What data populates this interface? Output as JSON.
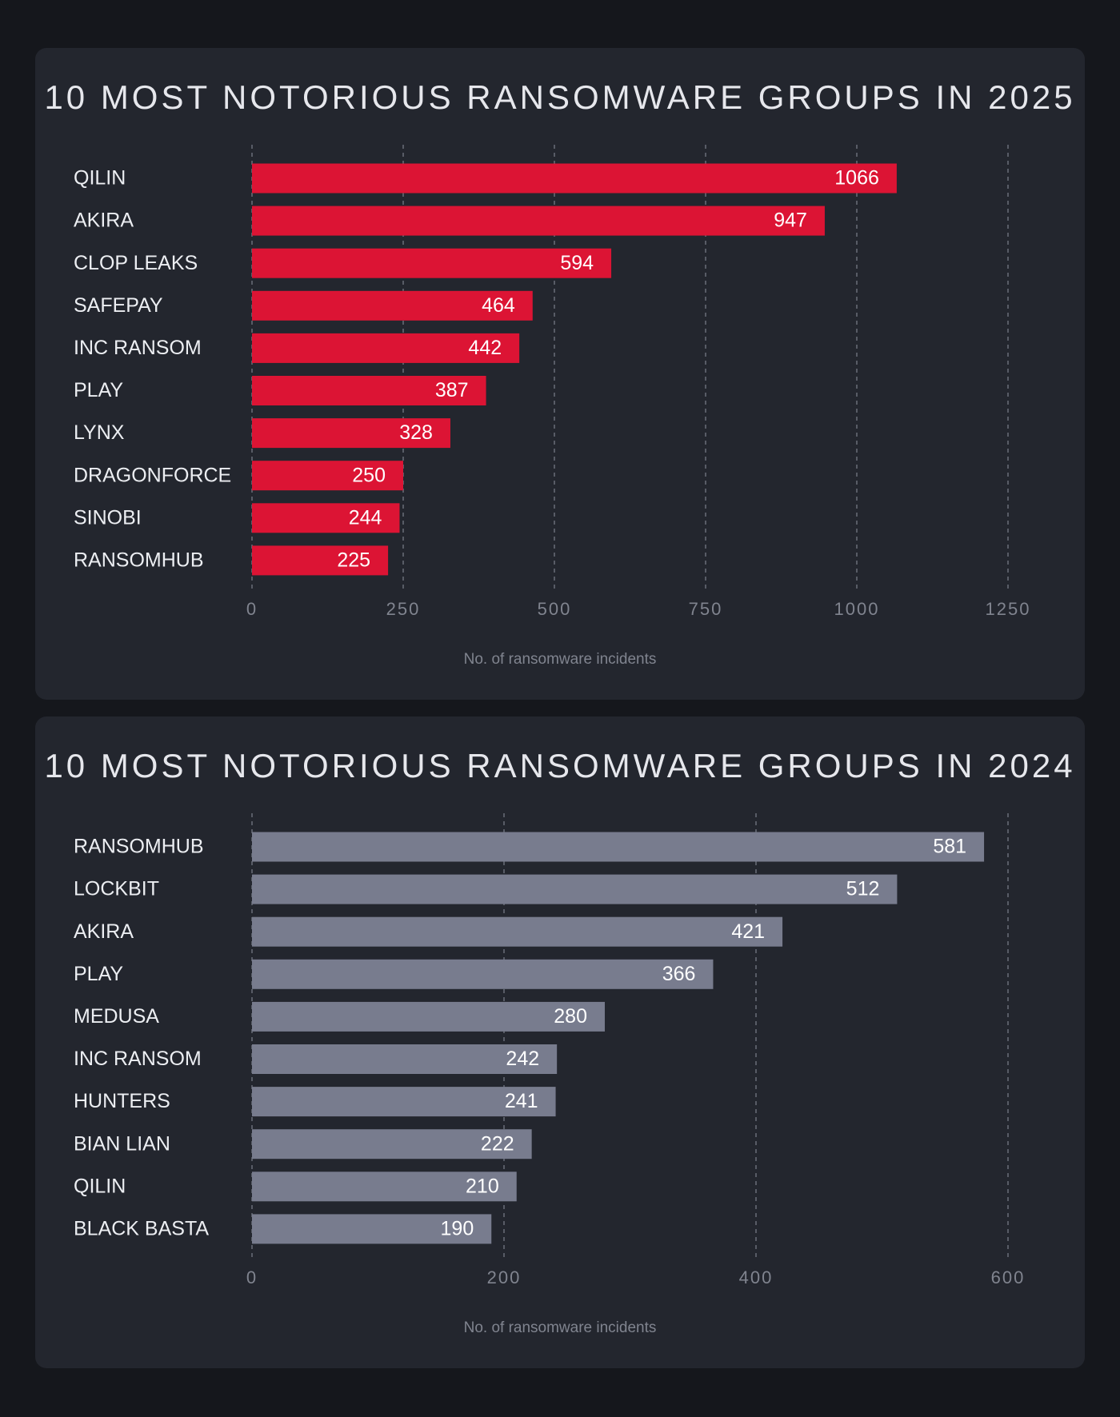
{
  "colors": {
    "background": "#15171c",
    "card": "#23262e",
    "bar_2025": "#dc1434",
    "bar_2024": "#787c8e"
  },
  "chart_data": [
    {
      "type": "bar",
      "orientation": "horizontal",
      "title": "10 MOST NOTORIOUS RANSOMWARE GROUPS IN 2025",
      "xlabel": "No. of ransomware incidents",
      "categories": [
        "QILIN",
        "AKIRA",
        "CLOP LEAKS",
        "SAFEPAY",
        "INC RANSOM",
        "PLAY",
        "LYNX",
        "DRAGONFORCE",
        "SINOBI",
        "RANSOMHUB"
      ],
      "values": [
        1066,
        947,
        594,
        464,
        442,
        387,
        328,
        250,
        244,
        225
      ],
      "xlim": [
        0,
        1250
      ],
      "xticks": [
        0,
        250,
        500,
        750,
        1000,
        1250
      ],
      "grid": true,
      "color": "#dc1434"
    },
    {
      "type": "bar",
      "orientation": "horizontal",
      "title": "10 MOST NOTORIOUS RANSOMWARE GROUPS IN 2024",
      "xlabel": "No. of ransomware incidents",
      "categories": [
        "RANSOMHUB",
        "LOCKBIT",
        "AKIRA",
        "PLAY",
        "MEDUSA",
        "INC RANSOM",
        "HUNTERS",
        "BIAN LIAN",
        "QILIN",
        "BLACK BASTA"
      ],
      "values": [
        581,
        512,
        421,
        366,
        280,
        242,
        241,
        222,
        210,
        190
      ],
      "xlim": [
        0,
        600
      ],
      "xticks": [
        0,
        200,
        400,
        600
      ],
      "grid": true,
      "color": "#787c8e"
    }
  ]
}
